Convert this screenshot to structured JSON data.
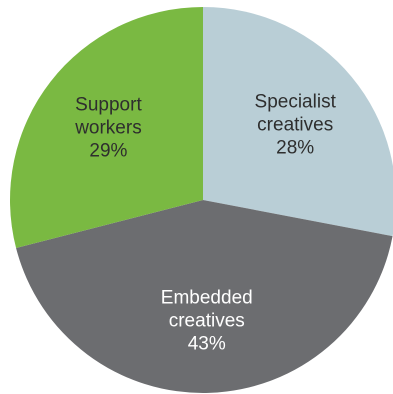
{
  "chart_data": {
    "type": "pie",
    "slices": [
      {
        "label_lines": [
          "Specialist",
          "creatives"
        ],
        "value": 28,
        "value_label": "28%",
        "color": "#b9ced6",
        "text_color": "#2e2e2e"
      },
      {
        "label_lines": [
          "Embedded",
          "creatives"
        ],
        "value": 43,
        "value_label": "43%",
        "color": "#6c6d70",
        "text_color": "#ffffff"
      },
      {
        "label_lines": [
          "Support",
          "workers"
        ],
        "value": 29,
        "value_label": "29%",
        "color": "#7ab942",
        "text_color": "#2e2e2e"
      }
    ],
    "start_angle_deg": 0,
    "direction": "clockwise"
  }
}
